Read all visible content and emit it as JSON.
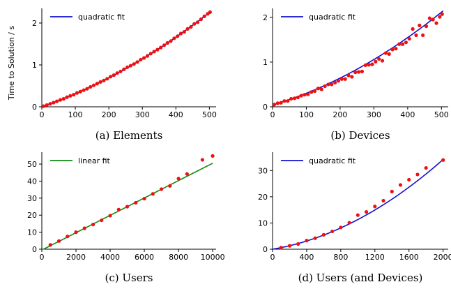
{
  "figure": {
    "ylabel": "Time to Solution / s"
  },
  "chart_data": [
    {
      "type": "scatter",
      "caption": "(a) Elements",
      "xlim": [
        0,
        520
      ],
      "ylim": [
        0,
        2.35
      ],
      "xticks": [
        0,
        100,
        200,
        300,
        400,
        500
      ],
      "xtick_labels": [
        "0",
        "100",
        "200",
        "300",
        "400",
        "500"
      ],
      "yticks": [
        0,
        1,
        2
      ],
      "ytick_labels": [
        "0",
        "1",
        "2"
      ],
      "fit": {
        "name": "quadratic fit",
        "kind": "quadratic",
        "coef": [
          0,
          0.00276,
          3.48e-06
        ],
        "xrange": [
          0,
          505
        ],
        "color": "#1010d0"
      },
      "point_color": "#ee1111",
      "points": [
        [
          5,
          0.014
        ],
        [
          15,
          0.043
        ],
        [
          25,
          0.072
        ],
        [
          35,
          0.1
        ],
        [
          45,
          0.131
        ],
        [
          55,
          0.164
        ],
        [
          65,
          0.19
        ],
        [
          75,
          0.229
        ],
        [
          85,
          0.262
        ],
        [
          95,
          0.289
        ],
        [
          105,
          0.331
        ],
        [
          115,
          0.363
        ],
        [
          125,
          0.397
        ],
        [
          135,
          0.43
        ],
        [
          145,
          0.476
        ],
        [
          155,
          0.513
        ],
        [
          165,
          0.554
        ],
        [
          175,
          0.594
        ],
        [
          185,
          0.628
        ],
        [
          195,
          0.67
        ],
        [
          205,
          0.72
        ],
        [
          215,
          0.756
        ],
        [
          225,
          0.805
        ],
        [
          235,
          0.845
        ],
        [
          245,
          0.896
        ],
        [
          255,
          0.945
        ],
        [
          265,
          0.982
        ],
        [
          275,
          1.022
        ],
        [
          285,
          1.07
        ],
        [
          295,
          1.126
        ],
        [
          305,
          1.167
        ],
        [
          315,
          1.214
        ],
        [
          325,
          1.27
        ],
        [
          335,
          1.318
        ],
        [
          345,
          1.365
        ],
        [
          355,
          1.415
        ],
        [
          365,
          1.47
        ],
        [
          375,
          1.525
        ],
        [
          385,
          1.57
        ],
        [
          395,
          1.636
        ],
        [
          405,
          1.686
        ],
        [
          415,
          1.75
        ],
        [
          425,
          1.79
        ],
        [
          435,
          1.86
        ],
        [
          445,
          1.908
        ],
        [
          455,
          1.98
        ],
        [
          465,
          2.02
        ],
        [
          475,
          2.09
        ],
        [
          485,
          2.16
        ],
        [
          495,
          2.22
        ],
        [
          502,
          2.26
        ]
      ]
    },
    {
      "type": "scatter",
      "caption": "(b) Devices",
      "xlim": [
        0,
        520
      ],
      "ylim": [
        0,
        2.2
      ],
      "xticks": [
        0,
        100,
        200,
        300,
        400,
        500
      ],
      "xtick_labels": [
        "0",
        "100",
        "200",
        "300",
        "400",
        "500"
      ],
      "yticks": [
        0,
        1,
        2
      ],
      "ytick_labels": [
        "0",
        "1",
        "2"
      ],
      "fit": {
        "name": "quadratic fit",
        "kind": "quadratic",
        "coef": [
          0.04,
          0.00225,
          3.8e-06
        ],
        "xrange": [
          0,
          505
        ],
        "color": "#1010d0"
      },
      "point_color": "#ee1111",
      "points": [
        [
          5,
          0.05
        ],
        [
          15,
          0.08
        ],
        [
          25,
          0.09
        ],
        [
          35,
          0.13
        ],
        [
          45,
          0.13
        ],
        [
          55,
          0.18
        ],
        [
          65,
          0.19
        ],
        [
          75,
          0.21
        ],
        [
          85,
          0.25
        ],
        [
          95,
          0.27
        ],
        [
          105,
          0.28
        ],
        [
          115,
          0.33
        ],
        [
          125,
          0.35
        ],
        [
          135,
          0.41
        ],
        [
          145,
          0.39
        ],
        [
          155,
          0.46
        ],
        [
          165,
          0.5
        ],
        [
          175,
          0.5
        ],
        [
          185,
          0.54
        ],
        [
          195,
          0.58
        ],
        [
          205,
          0.62
        ],
        [
          215,
          0.62
        ],
        [
          225,
          0.7
        ],
        [
          235,
          0.67
        ],
        [
          245,
          0.77
        ],
        [
          255,
          0.78
        ],
        [
          265,
          0.79
        ],
        [
          275,
          0.93
        ],
        [
          285,
          0.94
        ],
        [
          295,
          0.95
        ],
        [
          305,
          1.01
        ],
        [
          315,
          1.07
        ],
        [
          325,
          1.03
        ],
        [
          335,
          1.2
        ],
        [
          345,
          1.18
        ],
        [
          355,
          1.28
        ],
        [
          365,
          1.3
        ],
        [
          375,
          1.4
        ],
        [
          385,
          1.4
        ],
        [
          395,
          1.44
        ],
        [
          405,
          1.52
        ],
        [
          415,
          1.74
        ],
        [
          425,
          1.6
        ],
        [
          435,
          1.82
        ],
        [
          445,
          1.6
        ],
        [
          455,
          1.8
        ],
        [
          465,
          1.98
        ],
        [
          475,
          1.95
        ],
        [
          485,
          1.87
        ],
        [
          495,
          2.01
        ],
        [
          502,
          2.07
        ]
      ]
    },
    {
      "type": "scatter",
      "caption": "(c) Users",
      "xlim": [
        0,
        10200
      ],
      "ylim": [
        0,
        57
      ],
      "xticks": [
        0,
        2000,
        4000,
        6000,
        8000,
        10000
      ],
      "xtick_labels": [
        "0",
        "2000",
        "4000",
        "6000",
        "8000",
        "10000"
      ],
      "yticks": [
        0,
        10,
        20,
        30,
        40,
        50
      ],
      "ytick_labels": [
        "0",
        "10",
        "20",
        "30",
        "40",
        "50"
      ],
      "fit": {
        "name": "linear fit",
        "kind": "linear",
        "coef": [
          -0.5,
          0.0051
        ],
        "xrange": [
          0,
          10000
        ],
        "color": "#118811"
      },
      "point_color": "#ee1111",
      "points": [
        [
          500,
          2.5
        ],
        [
          1000,
          4.8
        ],
        [
          1500,
          7.5
        ],
        [
          2000,
          10
        ],
        [
          2500,
          12.3
        ],
        [
          3000,
          14.5
        ],
        [
          3500,
          17
        ],
        [
          4000,
          19.7
        ],
        [
          4500,
          23.3
        ],
        [
          5000,
          25
        ],
        [
          5500,
          27.3
        ],
        [
          6000,
          29.7
        ],
        [
          6500,
          32.5
        ],
        [
          7000,
          35.3
        ],
        [
          7500,
          37.2
        ],
        [
          8000,
          41.5
        ],
        [
          8500,
          44.2
        ],
        [
          9400,
          52.5
        ],
        [
          10000,
          54.8
        ]
      ]
    },
    {
      "type": "scatter",
      "caption": "(d) Users (and Devices)",
      "xlim": [
        0,
        2060
      ],
      "ylim": [
        0,
        37
      ],
      "xticks": [
        0,
        400,
        800,
        1200,
        1600,
        2000
      ],
      "xtick_labels": [
        "0",
        "400",
        "800",
        "1200",
        "1600",
        "2000"
      ],
      "yticks": [
        0,
        10,
        20,
        30
      ],
      "ytick_labels": [
        "0",
        "10",
        "20",
        "30"
      ],
      "fit": {
        "name": "quadratic fit",
        "kind": "quadratic",
        "coef": [
          0,
          0.0055,
          5.8e-06
        ],
        "xrange": [
          0,
          2000
        ],
        "color": "#1010d0"
      },
      "point_color": "#ee1111",
      "points": [
        [
          100,
          0.6
        ],
        [
          200,
          1.3
        ],
        [
          300,
          2
        ],
        [
          400,
          3.3
        ],
        [
          500,
          4.2
        ],
        [
          600,
          5.5
        ],
        [
          700,
          6.8
        ],
        [
          800,
          8.3
        ],
        [
          900,
          10.1
        ],
        [
          1000,
          13
        ],
        [
          1100,
          14.2
        ],
        [
          1200,
          16.3
        ],
        [
          1300,
          18.5
        ],
        [
          1400,
          22
        ],
        [
          1500,
          24.5
        ],
        [
          1600,
          26.5
        ],
        [
          1700,
          28.5
        ],
        [
          1800,
          31
        ],
        [
          2000,
          34
        ]
      ]
    }
  ]
}
